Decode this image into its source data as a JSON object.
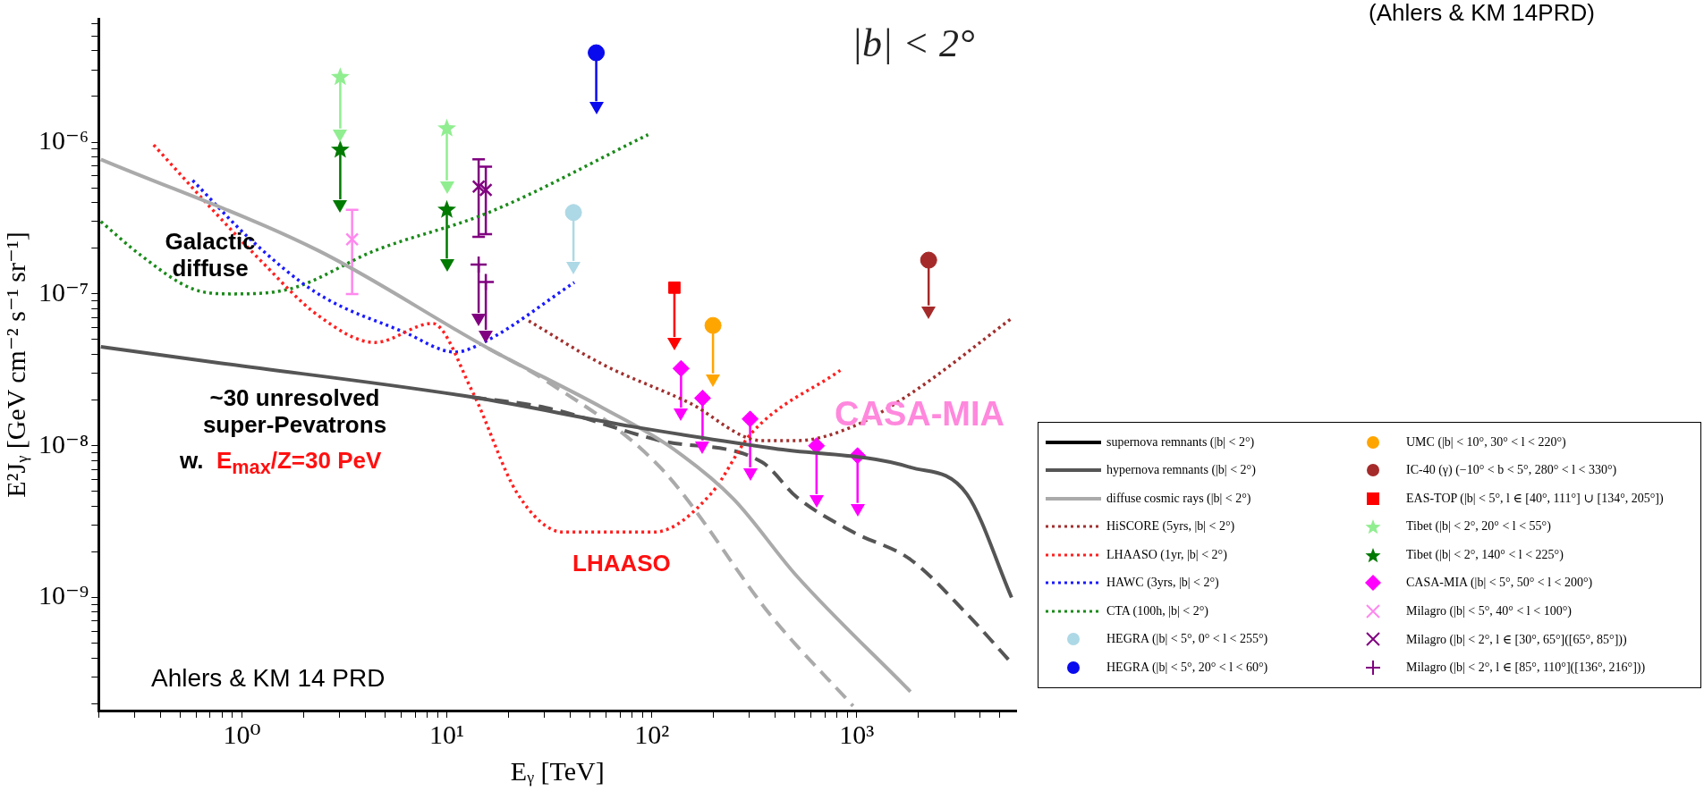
{
  "chart_data": {
    "type": "line",
    "xlabel": "Eᵧ [TeV]",
    "ylabel": "E²Jᵧ [GeV cm⁻² s⁻¹ sr⁻¹]",
    "log": "xy",
    "xlim": [
      0.2,
      6000
    ],
    "ylim": [
      1.8e-10,
      6.5e-06
    ],
    "xticks": [
      {
        "value": 0.2,
        "label": null
      },
      {
        "value": 0.3,
        "label": null
      },
      {
        "value": 0.4,
        "label": null
      },
      {
        "value": 0.5,
        "label": null
      },
      {
        "value": 0.6,
        "label": null
      },
      {
        "value": 0.7,
        "label": null
      },
      {
        "value": 0.8,
        "label": null
      },
      {
        "value": 0.9,
        "label": null
      },
      {
        "value": 1,
        "label": "10⁰"
      },
      {
        "value": 2,
        "label": null
      },
      {
        "value": 3,
        "label": null
      },
      {
        "value": 4,
        "label": null
      },
      {
        "value": 5,
        "label": null
      },
      {
        "value": 6,
        "label": null
      },
      {
        "value": 7,
        "label": null
      },
      {
        "value": 8,
        "label": null
      },
      {
        "value": 9,
        "label": null
      },
      {
        "value": 10,
        "label": "10¹"
      },
      {
        "value": 20,
        "label": null
      },
      {
        "value": 30,
        "label": null
      },
      {
        "value": 40,
        "label": null
      },
      {
        "value": 50,
        "label": null
      },
      {
        "value": 60,
        "label": null
      },
      {
        "value": 70,
        "label": null
      },
      {
        "value": 80,
        "label": null
      },
      {
        "value": 90,
        "label": null
      },
      {
        "value": 100,
        "label": "10²"
      },
      {
        "value": 200,
        "label": null
      },
      {
        "value": 300,
        "label": null
      },
      {
        "value": 400,
        "label": null
      },
      {
        "value": 500,
        "label": null
      },
      {
        "value": 600,
        "label": null
      },
      {
        "value": 700,
        "label": null
      },
      {
        "value": 800,
        "label": null
      },
      {
        "value": 900,
        "label": null
      },
      {
        "value": 1000,
        "label": "10³"
      },
      {
        "value": 2000,
        "label": null
      },
      {
        "value": 3000,
        "label": null
      },
      {
        "value": 4000,
        "label": null
      },
      {
        "value": 5000,
        "label": null
      }
    ],
    "yticks": [
      {
        "value": 2e-10,
        "label": null
      },
      {
        "value": 3e-10,
        "label": null
      },
      {
        "value": 4e-10,
        "label": null
      },
      {
        "value": 5e-10,
        "label": null
      },
      {
        "value": 6e-10,
        "label": null
      },
      {
        "value": 7e-10,
        "label": null
      },
      {
        "value": 8e-10,
        "label": null
      },
      {
        "value": 9e-10,
        "label": null
      },
      {
        "value": 1e-09,
        "label": "10⁻⁹"
      },
      {
        "value": 2e-09,
        "label": null
      },
      {
        "value": 3e-09,
        "label": null
      },
      {
        "value": 4e-09,
        "label": null
      },
      {
        "value": 5e-09,
        "label": null
      },
      {
        "value": 6e-09,
        "label": null
      },
      {
        "value": 7e-09,
        "label": null
      },
      {
        "value": 8e-09,
        "label": null
      },
      {
        "value": 9e-09,
        "label": null
      },
      {
        "value": 1e-08,
        "label": "10⁻⁸"
      },
      {
        "value": 2e-08,
        "label": null
      },
      {
        "value": 3e-08,
        "label": null
      },
      {
        "value": 4e-08,
        "label": null
      },
      {
        "value": 5e-08,
        "label": null
      },
      {
        "value": 6e-08,
        "label": null
      },
      {
        "value": 7e-08,
        "label": null
      },
      {
        "value": 8e-08,
        "label": null
      },
      {
        "value": 9e-08,
        "label": null
      },
      {
        "value": 1e-07,
        "label": "10⁻⁷"
      },
      {
        "value": 2e-07,
        "label": null
      },
      {
        "value": 3e-07,
        "label": null
      },
      {
        "value": 4e-07,
        "label": null
      },
      {
        "value": 5e-07,
        "label": null
      },
      {
        "value": 6e-07,
        "label": null
      },
      {
        "value": 7e-07,
        "label": null
      },
      {
        "value": 8e-07,
        "label": null
      },
      {
        "value": 9e-07,
        "label": null
      },
      {
        "value": 1e-06,
        "label": "10⁻⁶"
      },
      {
        "value": 2e-06,
        "label": null
      },
      {
        "value": 3e-06,
        "label": null
      },
      {
        "value": 4e-06,
        "label": null
      },
      {
        "value": 5e-06,
        "label": null
      },
      {
        "value": 6e-06,
        "label": null
      }
    ],
    "legend": "right",
    "annotations": [
      "|b| < 2°",
      "Galactic diffuse",
      "~30 unresolved super-Pevatrons",
      "w.",
      "E$_{max}$/Z=30 PeV",
      "LHAASO",
      "CASA-MIA",
      "Ahlers & KM 14 PRD",
      "(Ahlers & KM 14PRD)"
    ],
    "series": [
      {
        "name": "supernova remnants (|b| < 2°)",
        "line_style": "solid",
        "color": "#000000"
      },
      {
        "name": "hypernova remnants (|b| < 2°)",
        "line_style": "solid",
        "color": "#555555",
        "x": [
          0.205,
          0.74,
          13.3,
          79.8,
          394,
          1830,
          3450,
          5700
        ],
        "values": [
          4.48e-08,
          3.54e-08,
          2.09e-08,
          1.34e-08,
          9.6e-09,
          7.2e-09,
          4.8e-09,
          1e-09
        ]
      },
      {
        "name": "diffuse cosmic rays (|b| < 2°)",
        "line_style": "solid",
        "color": "#aaaaaa",
        "x": [
          0.205,
          2.36,
          16,
          57.5,
          121,
          249,
          509,
          1830
        ],
        "values": [
          7.7e-07,
          1.93e-07,
          4.37e-08,
          1.78e-08,
          1e-08,
          4.5e-09,
          1.39e-09,
          2.4e-10
        ]
      },
      {
        "name": "HiSCORE (5yrs, |b| < 2°)",
        "line_style": "dotted",
        "color": "#a0302e",
        "x": [
          25.1,
          57.5,
          151,
          345,
          509,
          960,
          1830,
          5700
        ],
        "values": [
          6.65e-08,
          3.44e-08,
          1.93e-08,
          1.08e-08,
          1.08e-08,
          1.34e-08,
          2.2e-08,
          6.9e-08
        ]
      },
      {
        "name": "LHAASO (1yr, |b| < 2°)",
        "line_style": "dotted",
        "color": "#ff2020",
        "x": [
          0.371,
          0.74,
          1.24,
          2.36,
          4.46,
          8.5,
          13.3,
          22.2,
          37,
          103,
          194,
          305,
          832
        ],
        "values": [
          9.6e-07,
          3.44e-07,
          1.65e-07,
          7.2e-08,
          4.79e-08,
          6.4e-08,
          2.29e-08,
          4.8e-09,
          2.7e-09,
          2.7e-09,
          4.8e-09,
          1.2e-08,
          3.14e-08
        ]
      },
      {
        "name": "HAWC (3yrs, |b| < 2°)",
        "line_style": "dotted",
        "color": "#1a1aff",
        "x": [
          0.575,
          1.1,
          2.36,
          6.2,
          11.0,
          15.1,
          41.9
        ],
        "values": [
          5.6e-07,
          2.29e-07,
          1e-07,
          5.6e-08,
          4.14e-08,
          4.79e-08,
          1.19e-07
        ]
      },
      {
        "name": "CTA (100h, |b| < 2°)",
        "line_style": "dotted",
        "color": "#1a8a1a",
        "x": [
          0.205,
          0.324,
          0.575,
          0.9,
          1.72,
          4.46,
          16,
          96
        ],
        "values": [
          3e-07,
          1.78e-07,
          1.08e-07,
          1e-07,
          1.08e-07,
          1.93e-07,
          3.44e-07,
          1.12e-06
        ]
      },
      {
        "name": "HEGRA (|b| < 5°, 0° < l < 255°)",
        "type": "scatter",
        "marker": "circle",
        "color": "#add8e6",
        "x": [
          41.5
        ],
        "values": [
          3.44e-07
        ],
        "errors": [
          [
            1.65e-07,
            3.44e-07
          ]
        ]
      },
      {
        "name": "HEGRA (|b| < 5°, 20° < l < 60°)",
        "type": "scatter",
        "marker": "circle",
        "color": "#0a0aee",
        "x": [
          53.6
        ],
        "values": [
          3.88e-06
        ],
        "errors": [
          [
            1.86e-06,
            3.88e-06
          ]
        ]
      },
      {
        "name": "UMC (|b| < 10°, 30° < l < 220°)",
        "type": "scatter",
        "marker": "circle",
        "color": "#ffa500",
        "x": [
          199
        ],
        "values": [
          6.2e-08
        ],
        "errors": [
          [
            3e-08,
            6.2e-08
          ]
        ]
      },
      {
        "name": "IC-40 (γ) (−10° < b < 5°, 280° < l < 330°)",
        "type": "scatter",
        "marker": "circle",
        "color": "#a52a2a",
        "x": [
          2245
        ],
        "values": [
          1.67e-07
        ],
        "errors": [
          [
            8.4e-08,
            1.67e-07
          ]
        ]
      },
      {
        "name": "EAS-TOP (|b| < 5°, l ∈ [40°, 111°] ∪ [134°, 205°])",
        "type": "scatter",
        "marker": "square",
        "color": "#ff0000",
        "x": [
          129
        ],
        "values": [
          1.1e-07
        ],
        "errors": [
          [
            5.2e-08,
            1.1e-07
          ]
        ]
      },
      {
        "name": "Tibet (|b| < 2°, 20° < l < 55°)",
        "type": "scatter",
        "marker": "star",
        "color": "#90ee90",
        "x": [
          3.02,
          10
        ],
        "values": [
          2.68e-06,
          1.23e-06
        ],
        "errors": [
          [
            1.23e-06,
            2.68e-06
          ],
          [
            5.6e-07,
            1.23e-06
          ]
        ]
      },
      {
        "name": "Tibet (|b| < 2°, 140° < l < 225°)",
        "type": "scatter",
        "marker": "star",
        "color": "#007a00",
        "x": [
          3.02,
          10
        ],
        "values": [
          8.9e-07,
          3.58e-07
        ],
        "errors": [
          [
            4.2e-07,
            8.9e-07
          ],
          [
            1.71e-07,
            3.58e-07
          ]
        ]
      },
      {
        "name": "CASA-MIA (|b| < 5°, 50° < l < 200°)",
        "type": "scatter",
        "marker": "diamond",
        "color": "#ff00ff",
        "x": [
          139,
          177,
          302,
          637,
          1010
        ],
        "values": [
          3.23e-08,
          2.06e-08,
          1.5e-08,
          1e-08,
          8.6e-09
        ],
        "errors": [
          [
            1.78e-08,
            3.23e-08
          ],
          [
            1.08e-08,
            2.06e-08
          ],
          [
            7.2e-09,
            1.5e-08
          ],
          [
            4.8e-09,
            1e-08
          ],
          [
            4.2e-09,
            8.6e-09
          ]
        ]
      },
      {
        "name": "Milagro (|b| < 5°, 40° < l < 100°)",
        "type": "scatter",
        "marker": "cross",
        "color": "#ff88ee",
        "x": [
          3.45
        ],
        "values": [
          2.29e-07
        ],
        "errors": [
          [
            1e-07,
            3.58e-07
          ]
        ]
      },
      {
        "name": "Milagro (|b| < 2°, l ∈ [30°, 65°]([65°, 85°]))",
        "type": "scatter",
        "marker": "cross",
        "color": "#800080",
        "x": [
          14.3,
          15.5
        ],
        "values": [
          5.1e-07,
          4.85e-07
        ],
        "errors": [
          [
            2.38e-07,
            7.7e-07
          ],
          [
            2.48e-07,
            6.9e-07
          ]
        ]
      },
      {
        "name": "Milagro (|b| < 2°, l ∈ [85°, 110°]([136°, 216°]))",
        "type": "scatter",
        "marker": "plus",
        "color": "#800080",
        "x": [
          14.3,
          15.5
        ],
        "values": [
          1.56e-07,
          1.2e-07
        ],
        "errors": [
          [
            7.5e-08,
            1.56e-07
          ],
          [
            5.8e-08,
            1.2e-07
          ]
        ]
      },
      {
        "line_style": "dashed",
        "color": "#555555",
        "x": [
          13.3,
          30.5,
          110,
          345,
          509,
          960,
          1830,
          3450,
          5700
        ],
        "values": [
          2.09e-08,
          1.78e-08,
          1.08e-08,
          7.8e-09,
          4.6e-09,
          2.7e-09,
          1.78e-09,
          7.8e-10,
          3.7e-10
        ]
      },
      {
        "line_style": "dashed",
        "color": "#aaaaaa",
        "x": [
          16,
          30.5,
          110,
          394,
          960
        ],
        "values": [
          4.37e-08,
          2.68e-08,
          7.2e-09,
          7.2e-10,
          1.93e-10
        ]
      }
    ]
  }
}
